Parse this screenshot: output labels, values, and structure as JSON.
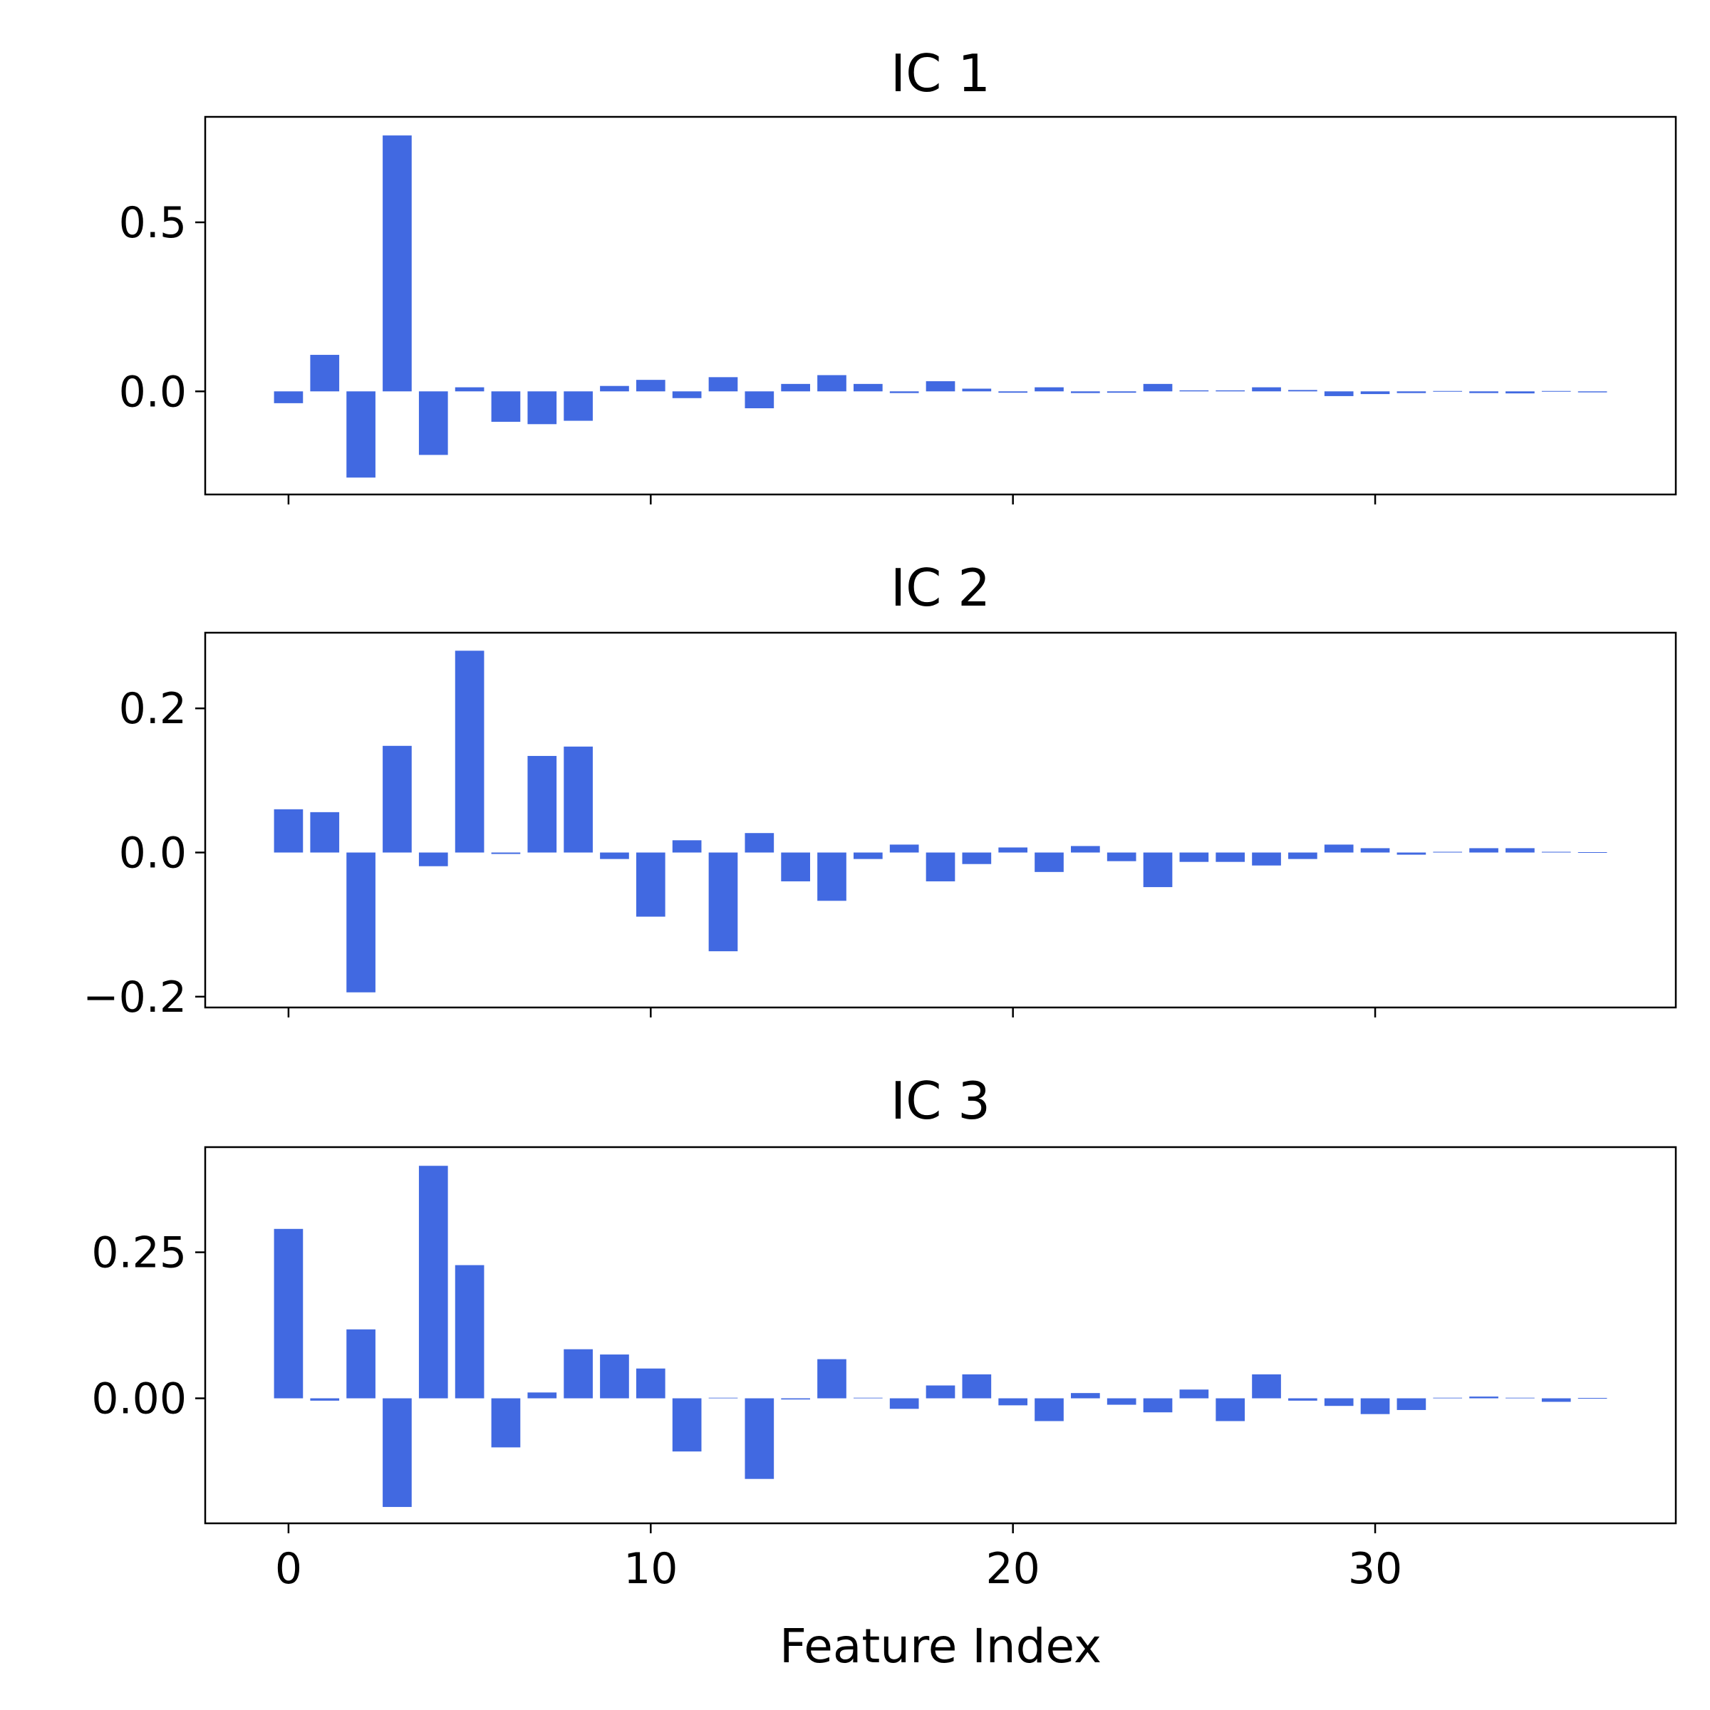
{
  "chart_data": [
    {
      "type": "bar",
      "title": "IC 1",
      "xlabel": "",
      "ylabel": "",
      "x": [
        0,
        1,
        2,
        3,
        4,
        5,
        6,
        7,
        8,
        9,
        10,
        11,
        12,
        13,
        14,
        15,
        16,
        17,
        18,
        19,
        20,
        21,
        22,
        23,
        24,
        25,
        26,
        27,
        28,
        29,
        30,
        31,
        32,
        33,
        34,
        35,
        36
      ],
      "values": [
        -0.035,
        0.108,
        -0.255,
        0.757,
        -0.188,
        0.012,
        -0.09,
        -0.097,
        -0.087,
        0.016,
        0.034,
        -0.02,
        0.042,
        -0.05,
        0.022,
        0.048,
        0.022,
        -0.005,
        0.03,
        0.008,
        -0.004,
        0.012,
        -0.005,
        -0.004,
        0.022,
        0.003,
        0.003,
        0.012,
        0.004,
        -0.014,
        -0.008,
        -0.005,
        0,
        -0.005,
        -0.006,
        0,
        -0.003
      ],
      "ylim": [
        -0.305,
        0.812
      ],
      "xlim": [
        -2.3,
        38.3
      ],
      "yticks": [
        0.0,
        0.5
      ],
      "ytick_labels": [
        "0.0",
        "0.5"
      ],
      "xticks": [
        0,
        10,
        20,
        30
      ],
      "xtick_labels": [],
      "grid": false,
      "color": "#4169E1"
    },
    {
      "type": "bar",
      "title": "IC 2",
      "xlabel": "",
      "ylabel": "",
      "x": [
        0,
        1,
        2,
        3,
        4,
        5,
        6,
        7,
        8,
        9,
        10,
        11,
        12,
        13,
        14,
        15,
        16,
        17,
        18,
        19,
        20,
        21,
        22,
        23,
        24,
        25,
        26,
        27,
        28,
        29,
        30,
        31,
        32,
        33,
        34,
        35,
        36
      ],
      "values": [
        0.06,
        0.056,
        -0.194,
        0.148,
        -0.019,
        0.28,
        -0.002,
        0.134,
        0.147,
        -0.009,
        -0.089,
        0.017,
        -0.137,
        0.027,
        -0.04,
        -0.067,
        -0.009,
        0.011,
        -0.04,
        -0.016,
        0.007,
        -0.027,
        0.009,
        -0.012,
        -0.048,
        -0.013,
        -0.013,
        -0.018,
        -0.009,
        0.011,
        0.006,
        -0.003,
        0.001,
        0.006,
        0.006,
        0.001,
        0
      ],
      "ylim": [
        -0.215,
        0.305
      ],
      "xlim": [
        -2.3,
        38.3
      ],
      "yticks": [
        -0.2,
        0.0,
        0.2
      ],
      "ytick_labels": [
        "−0.2",
        "0.0",
        "0.2"
      ],
      "xticks": [
        0,
        10,
        20,
        30
      ],
      "xtick_labels": [],
      "grid": false,
      "color": "#4169E1"
    },
    {
      "type": "bar",
      "title": "IC 3",
      "xlabel": "Feature Index",
      "ylabel": "",
      "x": [
        0,
        1,
        2,
        3,
        4,
        5,
        6,
        7,
        8,
        9,
        10,
        11,
        12,
        13,
        14,
        15,
        16,
        17,
        18,
        19,
        20,
        21,
        22,
        23,
        24,
        25,
        26,
        27,
        28,
        29,
        30,
        31,
        32,
        33,
        34,
        35,
        36
      ],
      "values": [
        0.29,
        -0.004,
        0.118,
        -0.186,
        0.398,
        0.228,
        -0.084,
        0.01,
        0.084,
        0.075,
        0.051,
        -0.091,
        0.001,
        -0.138,
        -0.002,
        0.067,
        0.001,
        -0.018,
        0.022,
        0.041,
        -0.012,
        -0.039,
        0.009,
        -0.011,
        -0.024,
        0.015,
        -0.039,
        0.041,
        -0.004,
        -0.013,
        -0.027,
        -0.02,
        0.001,
        0.003,
        0.001,
        -0.006,
        0
      ],
      "ylim": [
        -0.214,
        0.43
      ],
      "xlim": [
        -2.3,
        38.3
      ],
      "yticks": [
        0.0,
        0.25
      ],
      "ytick_labels": [
        "0.00",
        "0.25"
      ],
      "xticks": [
        0,
        10,
        20,
        30
      ],
      "xtick_labels": [
        "0",
        "10",
        "20",
        "30"
      ],
      "grid": false,
      "color": "#4169E1"
    }
  ]
}
